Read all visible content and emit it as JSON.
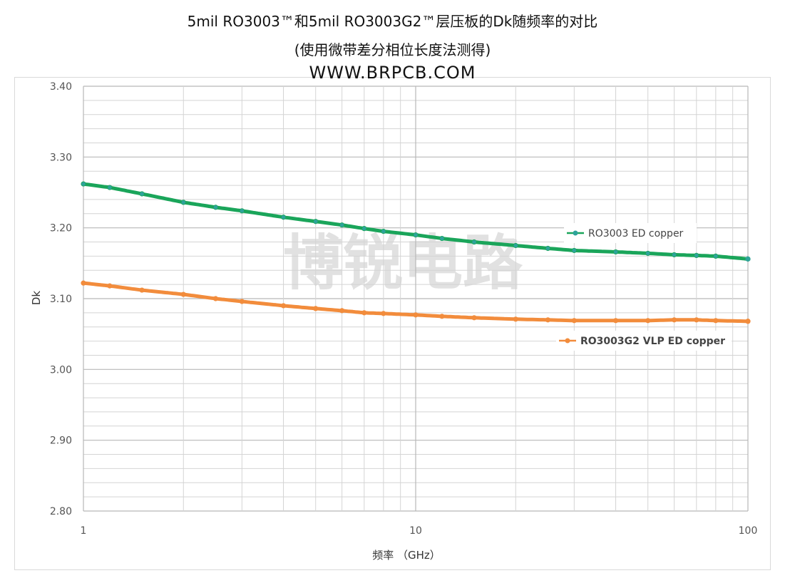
{
  "header": {
    "title_line1": "5mil RO3003™和5mil RO3003G2™层压板的Dk随频率的对比",
    "title_line2": "(使用微带差分相位长度法测得)",
    "title_line3": "WWW.BRPCB.COM"
  },
  "watermark": "博锐电路",
  "chart_data": {
    "type": "line",
    "title": "5mil RO3003™和5mil RO3003G2™层压板的Dk随频率的对比",
    "xlabel": "频率 （GHz）",
    "ylabel": "Dk",
    "x_scale": "log",
    "xlim": [
      1,
      100
    ],
    "ylim": [
      2.8,
      3.4
    ],
    "x_ticks": [
      1,
      10,
      100
    ],
    "x_tick_labels": [
      "1",
      "10",
      "100"
    ],
    "y_ticks": [
      2.8,
      2.9,
      3.0,
      3.1,
      3.2,
      3.3,
      3.4
    ],
    "y_tick_labels": [
      "2.80",
      "2.90",
      "3.00",
      "3.10",
      "3.20",
      "3.30",
      "3.40"
    ],
    "grid": true,
    "legend_placement": "inline, near right end of each series",
    "series": [
      {
        "name": "RO3003 ED copper",
        "color": "#1aa55a",
        "marker_color": "#2ea39a",
        "x": [
          1,
          1.2,
          1.5,
          2,
          2.5,
          3,
          4,
          5,
          6,
          7,
          8,
          10,
          12,
          15,
          20,
          25,
          30,
          40,
          50,
          60,
          70,
          80,
          100
        ],
        "y": [
          3.262,
          3.257,
          3.248,
          3.236,
          3.229,
          3.224,
          3.215,
          3.209,
          3.204,
          3.199,
          3.195,
          3.19,
          3.185,
          3.18,
          3.175,
          3.171,
          3.168,
          3.166,
          3.164,
          3.162,
          3.161,
          3.16,
          3.156
        ]
      },
      {
        "name": "RO3003G2 VLP ED copper",
        "color": "#f28c3c",
        "marker_color": "#f28c3c",
        "x": [
          1,
          1.2,
          1.5,
          2,
          2.5,
          3,
          4,
          5,
          6,
          7,
          8,
          10,
          12,
          15,
          20,
          25,
          30,
          40,
          50,
          60,
          70,
          80,
          100
        ],
        "y": [
          3.122,
          3.118,
          3.112,
          3.106,
          3.1,
          3.096,
          3.09,
          3.086,
          3.083,
          3.08,
          3.079,
          3.077,
          3.075,
          3.073,
          3.071,
          3.07,
          3.069,
          3.069,
          3.069,
          3.07,
          3.07,
          3.069,
          3.068
        ]
      }
    ]
  }
}
